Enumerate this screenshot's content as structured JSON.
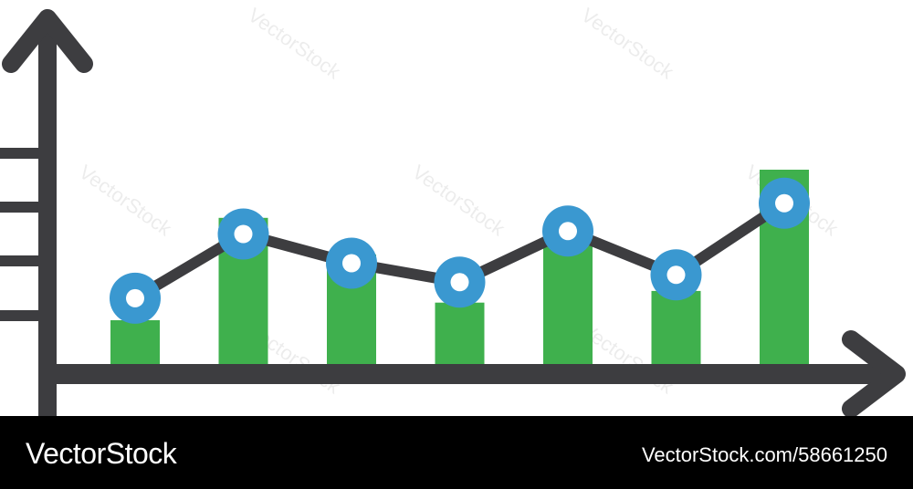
{
  "chart_data": {
    "type": "bar",
    "categories": [],
    "bars": [
      30,
      100,
      75,
      42,
      83,
      50,
      133
    ],
    "line": [
      45,
      89,
      69,
      56,
      91,
      61,
      110
    ],
    "ylim": [
      0,
      160
    ],
    "y_ticks": 4,
    "colors": {
      "bar": "#3fb04d",
      "line": "#3d3d40",
      "marker_ring": "#3a98d0",
      "marker_center": "#ffffff",
      "axis": "#3d3d40"
    },
    "grid": false,
    "legend": "none"
  },
  "watermark": {
    "text": "VectorStock"
  },
  "footer": {
    "brand": "VectorStock",
    "url": "VectorStock.com/58661250"
  }
}
